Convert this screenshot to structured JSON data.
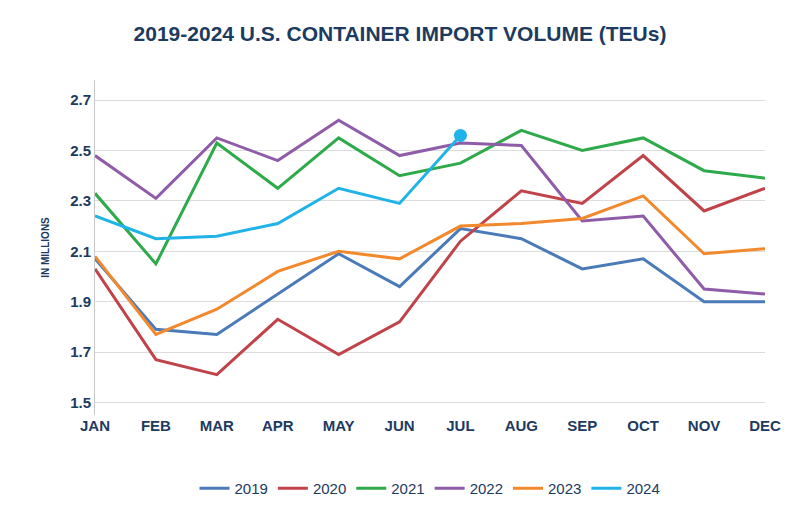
{
  "chart_data": {
    "type": "line",
    "title": "2019-2024 U.S. CONTAINER IMPORT VOLUME (TEUs)",
    "ylabel": "IN MILLIONS",
    "categories": [
      "JAN",
      "FEB",
      "MAR",
      "APR",
      "MAY",
      "JUN",
      "JUL",
      "AUG",
      "SEP",
      "OCT",
      "NOV",
      "DEC"
    ],
    "series": [
      {
        "name": "2019",
        "color": "#4a7ab8",
        "values": [
          2.07,
          1.79,
          1.77,
          1.93,
          2.09,
          1.96,
          2.19,
          2.15,
          2.03,
          2.07,
          1.9,
          1.9
        ]
      },
      {
        "name": "2020",
        "color": "#c0434a",
        "values": [
          2.03,
          1.67,
          1.61,
          1.83,
          1.69,
          1.82,
          2.14,
          2.34,
          2.29,
          2.48,
          2.26,
          2.35
        ]
      },
      {
        "name": "2021",
        "color": "#2eaa4a",
        "values": [
          2.33,
          2.05,
          2.53,
          2.35,
          2.55,
          2.4,
          2.45,
          2.58,
          2.5,
          2.55,
          2.42,
          2.39
        ]
      },
      {
        "name": "2022",
        "color": "#8e5ca8",
        "values": [
          2.48,
          2.31,
          2.55,
          2.46,
          2.62,
          2.48,
          2.53,
          2.52,
          2.22,
          2.24,
          1.95,
          1.93
        ]
      },
      {
        "name": "2023",
        "color": "#f2892d",
        "values": [
          2.08,
          1.77,
          1.87,
          2.02,
          2.1,
          2.07,
          2.2,
          2.21,
          2.23,
          2.32,
          2.09,
          2.11
        ]
      },
      {
        "name": "2024",
        "color": "#1fb3e8",
        "values": [
          2.24,
          2.15,
          2.16,
          2.21,
          2.35,
          2.29,
          2.56,
          null,
          null,
          null,
          null,
          null
        ]
      }
    ],
    "ylim": [
      1.45,
      2.78
    ],
    "yticks": [
      1.5,
      1.7,
      1.9,
      2.1,
      2.3,
      2.5,
      2.7
    ],
    "grid": true,
    "legend": "bottom"
  }
}
